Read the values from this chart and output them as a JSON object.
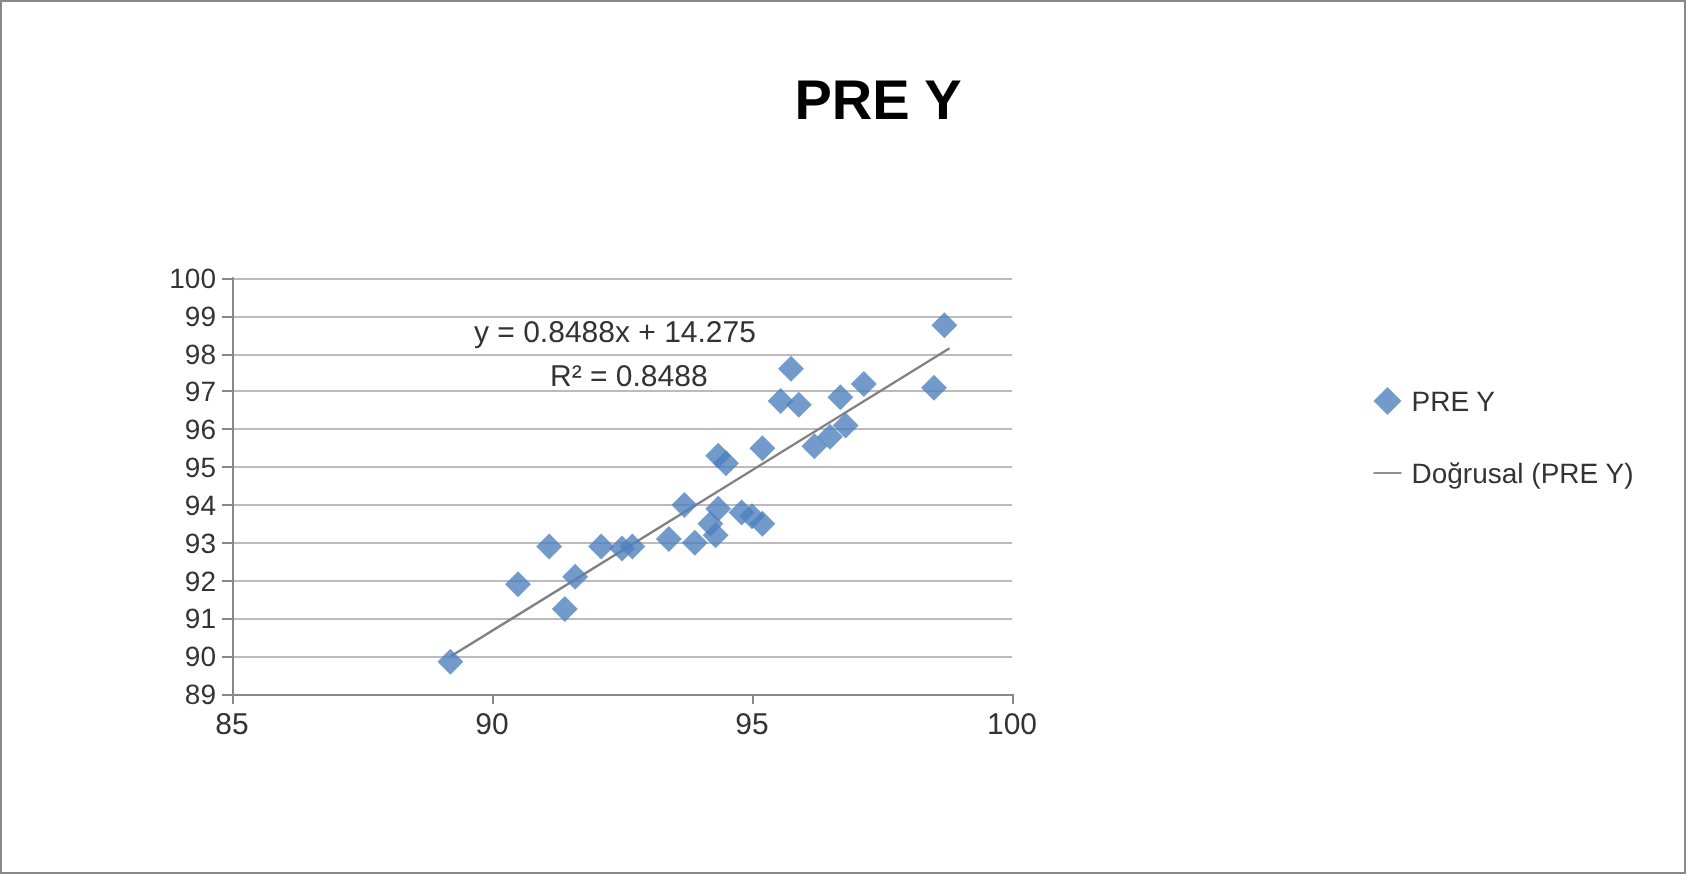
{
  "chart_data": {
    "type": "scatter",
    "title": "PRE Y",
    "grid": "y",
    "legend": "right",
    "xlim": [
      85,
      100
    ],
    "xticks": [
      85,
      90,
      95,
      100
    ],
    "ylim": [
      89,
      100
    ],
    "yticks": [
      89,
      90,
      91,
      92,
      93,
      94,
      95,
      96,
      97,
      98,
      99,
      100
    ],
    "annotations": [
      "y = 0.8488x + 14.275",
      "R² = 0.8488"
    ],
    "series": [
      {
        "name": "PRE Y",
        "marker": "diamond",
        "color": "#4f81bd",
        "x": [
          89.2,
          90.5,
          91.1,
          91.4,
          91.6,
          92.1,
          92.5,
          92.7,
          93.4,
          93.7,
          93.9,
          94.2,
          94.35,
          94.3,
          94.35,
          94.5,
          95.2,
          95.2,
          95.0,
          94.8,
          95.75,
          95.55,
          95.9,
          96.2,
          96.5,
          96.8,
          96.7,
          97.15,
          98.5,
          98.7
        ],
        "values": [
          89.85,
          91.9,
          92.9,
          91.25,
          92.1,
          92.9,
          92.85,
          92.9,
          93.1,
          94.0,
          93.0,
          93.5,
          93.9,
          93.2,
          95.3,
          95.1,
          95.5,
          93.5,
          93.7,
          93.8,
          97.6,
          96.75,
          96.65,
          95.55,
          95.8,
          96.1,
          96.85,
          97.2,
          97.1,
          98.75
        ]
      },
      {
        "name": "Doğrusal (PRE Y)",
        "type": "line",
        "marker": "none",
        "color": "#808080",
        "x": [
          89.2,
          98.8
        ],
        "values": [
          89.99,
          98.14
        ]
      }
    ]
  }
}
